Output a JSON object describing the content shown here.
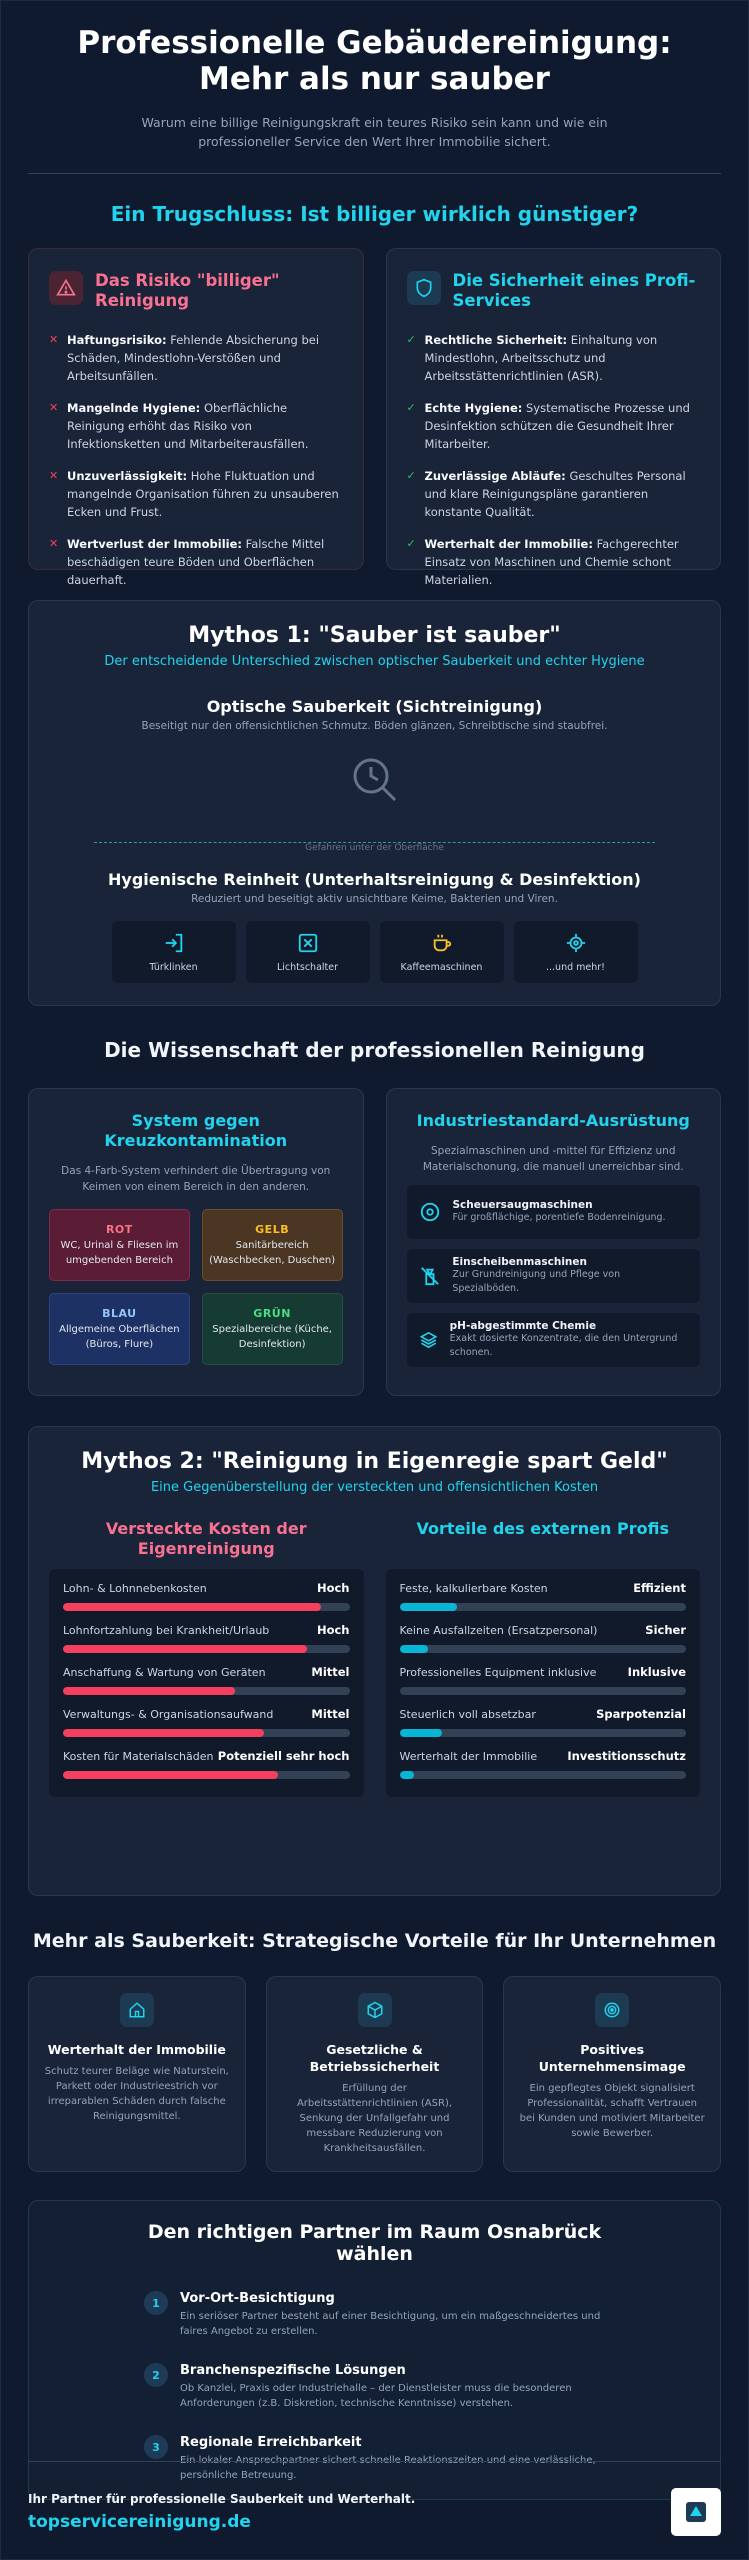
{
  "hero": {
    "title": "Professionelle Gebäudereinigung: Mehr als nur sauber",
    "subtitle": "Warum eine billige Reinigungskraft ein teures Risiko sein kann und wie ein professioneller Service den Wert Ihrer Immobilie sichert."
  },
  "trugschluss": {
    "title": "Ein Trugschluss: Ist billiger wirklich günstiger?",
    "risk": {
      "title": "Das Risiko \"billiger\" Reinigung",
      "icon": "warning-icon",
      "items": [
        {
          "label": "Haftungsrisiko:",
          "text": "Fehlende Absicherung bei Schäden, Mindestlohn-Verstößen und Arbeitsunfällen."
        },
        {
          "label": "Mangelnde Hygiene:",
          "text": "Oberflächliche Reinigung erhöht das Risiko von Infektionsketten und Mitarbeiterausfällen."
        },
        {
          "label": "Unzuverlässigkeit:",
          "text": "Hohe Fluktuation und mangelnde Organisation führen zu unsauberen Ecken und Frust."
        },
        {
          "label": "Wertverlust der Immobilie:",
          "text": "Falsche Mittel beschädigen teure Böden und Oberflächen dauerhaft."
        }
      ]
    },
    "safe": {
      "title": "Die Sicherheit eines Profi-Services",
      "icon": "shield-icon",
      "items": [
        {
          "label": "Rechtliche Sicherheit:",
          "text": "Einhaltung von Mindestlohn, Arbeitsschutz und Arbeitsstättenrichtlinien (ASR)."
        },
        {
          "label": "Echte Hygiene:",
          "text": "Systematische Prozesse und Desinfektion schützen die Gesundheit Ihrer Mitarbeiter."
        },
        {
          "label": "Zuverlässige Abläufe:",
          "text": "Geschultes Personal und klare Reinigungspläne garantieren konstante Qualität."
        },
        {
          "label": "Werterhalt der Immobilie:",
          "text": "Fachgerechter Einsatz von Maschinen und Chemie schont Materialien."
        }
      ]
    }
  },
  "myth1": {
    "title": "Mythos 1: \"Sauber ist sauber\"",
    "subtitle": "Der entscheidende Unterschied zwischen optischer Sauberkeit und echter Hygiene",
    "optical_title": "Optische Sauberkeit (Sichtreinigung)",
    "optical_text": "Beseitigt nur den offensichtlichen Schmutz. Böden glänzen, Schreibtische sind staubfrei.",
    "divider_label": "Gefahren unter der Oberfläche",
    "hygiene_title": "Hygienische Reinheit (Unterhaltsreinigung & Desinfektion)",
    "hygiene_text": "Reduziert und beseitigt aktiv unsichtbare Keime, Bakterien und Viren.",
    "tiles": [
      {
        "label": "Türklinken",
        "icon": "door-handle-icon"
      },
      {
        "label": "Lichtschalter",
        "icon": "light-switch-icon"
      },
      {
        "label": "Kaffeemaschinen",
        "icon": "coffee-icon"
      },
      {
        "label": "...und mehr!",
        "icon": "virus-icon"
      }
    ]
  },
  "science": {
    "title": "Die Wissenschaft der professionellen Reinigung",
    "cross": {
      "title": "System gegen Kreuzkontamination",
      "text": "Das 4-Farb-System verhindert die Übertragung von Keimen von einem Bereich in den anderen.",
      "colors": [
        {
          "name": "ROT",
          "text": "WC, Urinal & Fliesen im umgebenden Bereich"
        },
        {
          "name": "GELB",
          "text": "Sanitärbereich (Waschbecken, Duschen)"
        },
        {
          "name": "BLAU",
          "text": "Allgemeine Oberflächen (Büros, Flure)"
        },
        {
          "name": "GRÜN",
          "text": "Spezialbereiche (Küche, Desinfektion)"
        }
      ]
    },
    "equipment": {
      "title": "Industriestandard-Ausrüstung",
      "text": "Spezialmaschinen und -mittel für Effizienz und Materialschonung, die manuell unerreichbar sind.",
      "items": [
        {
          "title": "Scheuersaugmaschinen",
          "text": "Für großflächige, porentiefe Bodenreinigung.",
          "icon": "disc-icon"
        },
        {
          "title": "Einscheibenmaschinen",
          "text": "Zur Grundreinigung und Pflege von Spezialböden.",
          "icon": "spray-icon"
        },
        {
          "title": "pH-abgestimmte Chemie",
          "text": "Exakt dosierte Konzentrate, die den Untergrund schonen.",
          "icon": "layers-icon"
        }
      ]
    }
  },
  "myth2": {
    "title": "Mythos 2: \"Reinigung in Eigenregie spart Geld\"",
    "subtitle": "Eine Gegenüberstellung der versteckten und offensichtlichen Kosten",
    "hidden": {
      "title": "Versteckte Kosten der Eigenreinigung",
      "items": [
        {
          "label": "Lohn- & Lohnnebenkosten",
          "value": "Hoch",
          "level": 0.9
        },
        {
          "label": "Lohnfortzahlung bei Krankheit/Urlaub",
          "value": "Hoch",
          "level": 0.85
        },
        {
          "label": "Anschaffung & Wartung von Geräten",
          "value": "Mittel",
          "level": 0.6
        },
        {
          "label": "Verwaltungs- & Organisationsaufwand",
          "value": "Mittel",
          "level": 0.7
        },
        {
          "label": "Kosten für Materialschäden",
          "value": "Potenziell sehr hoch",
          "level": 0.75
        }
      ]
    },
    "external": {
      "title": "Vorteile des externen Profis",
      "items": [
        {
          "label": "Feste, kalkulierbare Kosten",
          "value": "Effizient",
          "level": 0.2
        },
        {
          "label": "Keine Ausfallzeiten (Ersatzpersonal)",
          "value": "Sicher",
          "level": 0.1
        },
        {
          "label": "Professionelles Equipment inklusive",
          "value": "Inklusive",
          "level": 0.0
        },
        {
          "label": "Steuerlich voll absetzbar",
          "value": "Sparpotenzial",
          "level": 0.15
        },
        {
          "label": "Werterhalt der Immobilie",
          "value": "Investitionsschutz",
          "level": 0.05
        }
      ]
    }
  },
  "strategic": {
    "title": "Mehr als Sauberkeit: Strategische Vorteile für Ihr Unternehmen",
    "cards": [
      {
        "title": "Werterhalt der Immobilie",
        "text": "Schutz teurer Beläge wie Naturstein, Parkett oder Industrieestrich vor irreparablen Schäden durch falsche Reinigungsmittel.",
        "icon": "home-icon"
      },
      {
        "title": "Gesetzliche & Betriebssicherheit",
        "text": "Erfüllung der Arbeitsstättenrichtlinien (ASR), Senkung der Unfallgefahr und messbare Reduzierung von Krankheitsausfällen.",
        "icon": "cube-icon"
      },
      {
        "title": "Positives Unternehmensimage",
        "text": "Ein gepflegtes Objekt signalisiert Professionalität, schafft Vertrauen bei Kunden und motiviert Mitarbeiter sowie Bewerber.",
        "icon": "target-icon"
      }
    ]
  },
  "partner": {
    "title": "Den richtigen Partner im Raum Osnabrück wählen",
    "steps": [
      {
        "num": "1",
        "title": "Vor-Ort-Besichtigung",
        "text": "Ein seriöser Partner besteht auf einer Besichtigung, um ein maßgeschneidertes und faires Angebot zu erstellen."
      },
      {
        "num": "2",
        "title": "Branchenspezifische Lösungen",
        "text": "Ob Kanzlei, Praxis oder Industriehalle – der Dienstleister muss die besonderen Anforderungen (z.B. Diskretion, technische Kenntnisse) verstehen."
      },
      {
        "num": "3",
        "title": "Regionale Erreichbarkeit",
        "text": "Ein lokaler Ansprechpartner sichert schnelle Reaktionszeiten und eine verlässliche, persönliche Betreuung."
      }
    ]
  },
  "footer": {
    "tagline": "Ihr Partner für professionelle Sauberkeit und Werterhalt.",
    "url": "topservicereinigung.de"
  },
  "colors": {
    "accent": "#22d3ee",
    "danger": "#f43f5e",
    "success": "#22c55e",
    "background": "#101a2e"
  }
}
